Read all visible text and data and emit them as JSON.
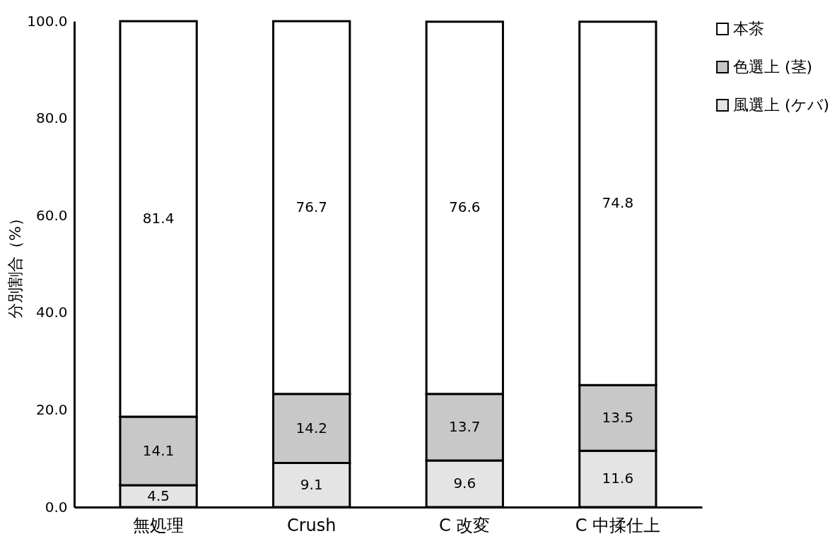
{
  "chart_data": {
    "type": "bar",
    "stacked": true,
    "ylabel": "分別割合（%）",
    "categories": [
      "無処理",
      "Crush",
      "C 改変",
      "C 中揉仕上"
    ],
    "series": [
      {
        "name": "風選上 (ケバ)",
        "color": "#e4e4e4",
        "values": [
          4.5,
          9.1,
          9.6,
          11.6
        ]
      },
      {
        "name": "色選上 (茎)",
        "color": "#c8c8c8",
        "values": [
          14.1,
          14.2,
          13.7,
          13.5
        ]
      },
      {
        "name": "本茶",
        "color": "#ffffff",
        "values": [
          81.4,
          76.7,
          76.6,
          74.8
        ]
      }
    ],
    "ylim": [
      0,
      100
    ],
    "yticks": [
      {
        "value": 0,
        "label": "0.0"
      },
      {
        "value": 20,
        "label": "20.0"
      },
      {
        "value": 40,
        "label": "40.0"
      },
      {
        "value": 60,
        "label": "60.0"
      },
      {
        "value": 80,
        "label": "80.0"
      },
      {
        "value": 100,
        "label": "100.0"
      }
    ],
    "data_labels": true,
    "grid": false,
    "legend": "right"
  }
}
